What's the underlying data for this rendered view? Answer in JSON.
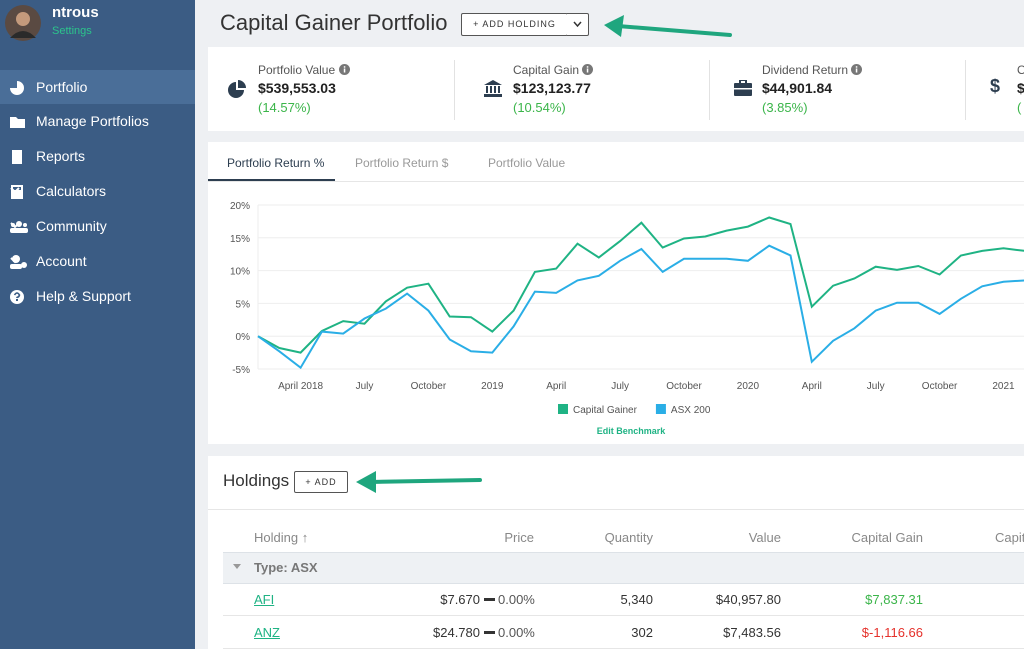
{
  "sidebar": {
    "user": "ntrous",
    "settings": "Settings",
    "menu": [
      "Portfolio",
      "Manage Portfolios",
      "Reports",
      "Calculators",
      "Community",
      "Account",
      "Help & Support"
    ]
  },
  "header": {
    "title": "Capital Gainer Portfolio",
    "button": "+ ADD HOLDING"
  },
  "stats": [
    {
      "label": "Portfolio Value",
      "value": "$539,553.03",
      "change": "(14.57%)"
    },
    {
      "label": "Capital Gain",
      "value": "$123,123.77",
      "change": "(10.54%)"
    },
    {
      "label": "Dividend Return",
      "value": "$44,901.84",
      "change": "(3.85%)"
    },
    {
      "icon": "$",
      "label": "O",
      "value": "$",
      "change": "("
    }
  ],
  "tabs": [
    "Portfolio Return %",
    "Portfolio Return $",
    "Portfolio Value"
  ],
  "chart_data": {
    "type": "line",
    "categories": [
      null,
      null,
      "April 2018",
      null,
      null,
      "July",
      null,
      null,
      "October",
      null,
      null,
      "2019",
      null,
      null,
      "April",
      null,
      null,
      "July",
      null,
      null,
      "October",
      null,
      null,
      "2020",
      null,
      null,
      "April",
      null,
      null,
      "July",
      null,
      null,
      "October",
      null,
      null,
      "2021",
      null
    ],
    "series": [
      {
        "name": "Capital Gainer",
        "color": "#1fb384",
        "values": [
          0,
          -1.8,
          -2.5,
          0.8,
          2.3,
          1.9,
          5.3,
          7.4,
          8.0,
          3.0,
          2.9,
          0.7,
          3.9,
          9.8,
          10.3,
          14.1,
          12.0,
          14.5,
          17.3,
          13.5,
          14.9,
          15.2,
          16.1,
          16.7,
          18.1,
          17.1,
          4.5,
          7.7,
          8.8,
          10.6,
          10.1,
          10.7,
          9.4,
          12.3,
          13.0,
          13.4,
          13.0
        ]
      },
      {
        "name": "ASX 200",
        "color": "#2aaee6",
        "values": [
          0,
          -2.3,
          -4.8,
          0.7,
          0.4,
          2.7,
          4.2,
          6.5,
          3.9,
          -0.5,
          -2.3,
          -2.5,
          1.5,
          6.8,
          6.6,
          8.5,
          9.2,
          11.5,
          13.3,
          9.8,
          11.8,
          11.8,
          11.8,
          11.5,
          13.8,
          12.3,
          -3.9,
          -0.7,
          1.2,
          3.9,
          5.1,
          5.1,
          3.4,
          5.7,
          7.6,
          8.3,
          8.5
        ]
      }
    ],
    "ylim": [
      -5,
      20
    ],
    "yticks": [
      {
        "value": -5,
        "label": "-5%"
      },
      {
        "value": 0,
        "label": "0%"
      },
      {
        "value": 5,
        "label": "5%"
      },
      {
        "value": 10,
        "label": "10%"
      },
      {
        "value": 15,
        "label": "15%"
      },
      {
        "value": 20,
        "label": "20%"
      }
    ],
    "grid": true,
    "legend": "bottom",
    "link": "Edit Benchmark"
  },
  "holdings": {
    "title": "Holdings",
    "button": "+ ADD",
    "columns": [
      "Holding ↑",
      "Price",
      "Quantity",
      "Value",
      "Capital Gain",
      "Capit"
    ],
    "group": "Type: ASX",
    "rows": [
      {
        "holding": "AFI",
        "price": "$7.670",
        "change": "0.00%",
        "quantity": "5,340",
        "value": "$40,957.80",
        "gain": "$7,837.31"
      },
      {
        "holding": "ANZ",
        "price": "$24.780",
        "change": "0.00%",
        "quantity": "302",
        "value": "$7,483.56",
        "gain": "$-1,116.66"
      }
    ]
  }
}
